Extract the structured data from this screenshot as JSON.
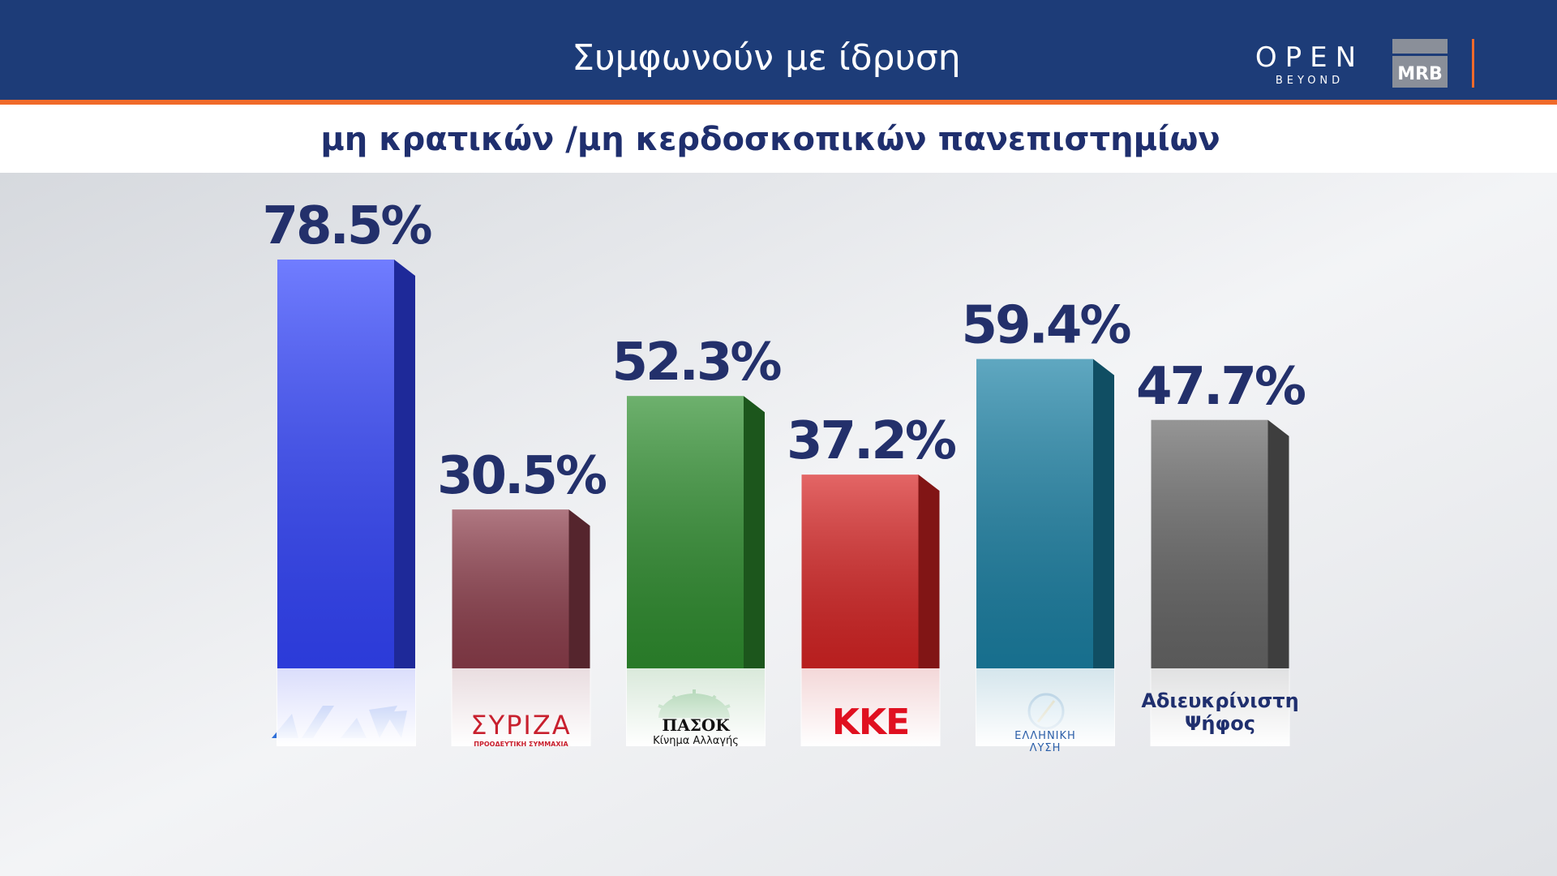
{
  "header": {
    "title": "Συμφωνούν με ίδρυση",
    "subtitle": "μη κρατικών /μη κερδοσκοπικών πανεπιστημίων",
    "brand": "OPEN",
    "brand_tagline": "BEYOND",
    "pollster": "MRB"
  },
  "chart_data": {
    "type": "bar",
    "categories": [
      null,
      "ΣΥΡΙΖΑ",
      "ΠΑΣΟΚ",
      "ΚΚΕ",
      "ΕΛΛΗΝΙΚΗ ΛΥΣΗ",
      "Αδιευκρίνιστη Ψήφος"
    ],
    "category_sublabels": [
      null,
      "ΠΡΟΟΔΕΥΤΙΚΗ ΣΥΜΜΑΧΙΑ",
      "Κίνημα Αλλαγής",
      null,
      null,
      null
    ],
    "values": [
      78.5,
      30.5,
      52.3,
      37.2,
      59.4,
      47.7
    ],
    "value_labels": [
      "78.5%",
      "30.5%",
      "52.3%",
      "37.2%",
      "59.4%",
      "47.7%"
    ],
    "colors": [
      "#3345ff",
      "#8e3e4c",
      "#2f8f2f",
      "#d82424",
      "#1b82a6",
      "#686868"
    ]
  }
}
